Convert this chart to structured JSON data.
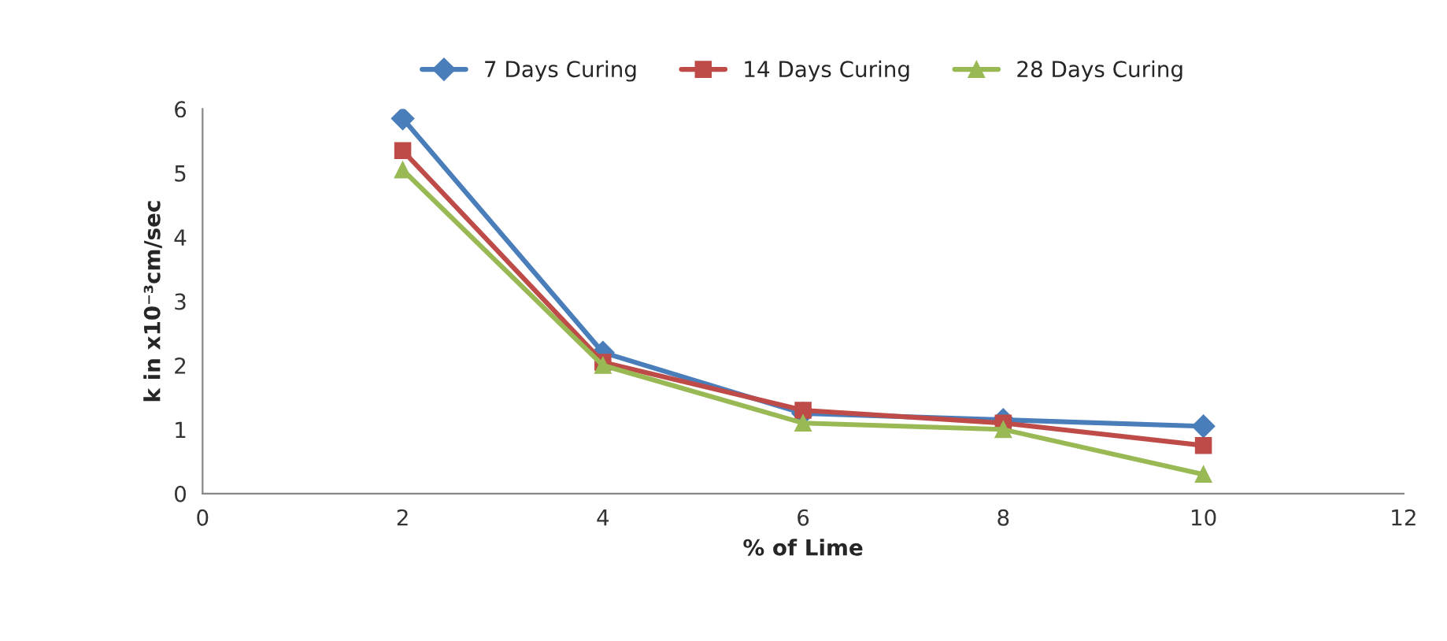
{
  "chart_data": {
    "type": "line",
    "xlabel": "% of Lime",
    "ylabel": "k in x10⁻³cm/sec",
    "x": [
      2,
      4,
      6,
      8,
      10
    ],
    "series": [
      {
        "name": "7 Days Curing",
        "color": "#4a7ebb",
        "marker": "diamond",
        "values": [
          5.85,
          2.2,
          1.25,
          1.15,
          1.05
        ]
      },
      {
        "name": "14 Days Curing",
        "color": "#be4b48",
        "marker": "square",
        "values": [
          5.35,
          2.05,
          1.3,
          1.1,
          0.75
        ]
      },
      {
        "name": "28 Days Curing",
        "color": "#98b954",
        "marker": "triangle",
        "values": [
          5.05,
          2.0,
          1.1,
          1.0,
          0.3
        ]
      }
    ],
    "xlim": [
      0,
      12
    ],
    "xticks": [
      0,
      2,
      4,
      6,
      8,
      10,
      12
    ],
    "ylim": [
      0,
      6
    ],
    "yticks": [
      0,
      1,
      2,
      3,
      4,
      5,
      6
    ],
    "grid": false,
    "legend": "top",
    "line_style": "solid"
  }
}
